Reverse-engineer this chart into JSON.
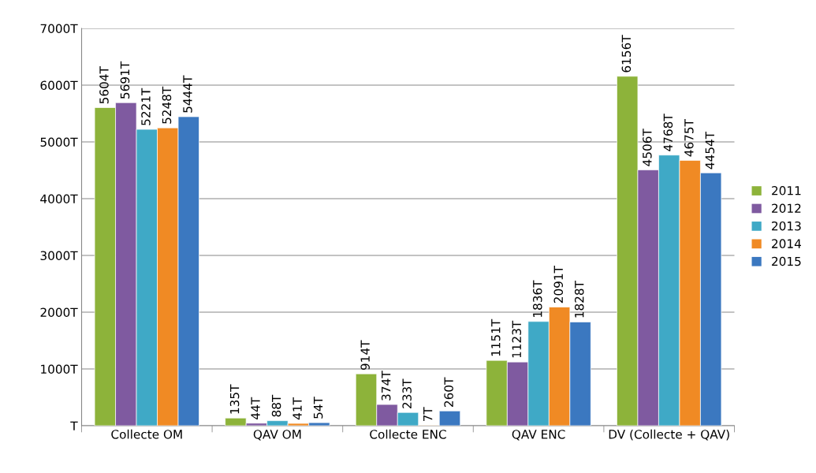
{
  "chart_data": {
    "type": "bar",
    "categories": [
      "Collecte OM",
      "QAV OM",
      "Collecte ENC",
      "QAV ENC",
      "DV (Collecte + QAV)"
    ],
    "series": [
      {
        "name": "2011",
        "color": "#8db33a",
        "values": [
          5604,
          135,
          914,
          1151,
          6156
        ],
        "value_labels": [
          "5604T",
          "135T",
          "914T",
          "1151T",
          "6156T"
        ]
      },
      {
        "name": "2012",
        "color": "#7f5aa0",
        "values": [
          5691,
          44,
          374,
          1123,
          4506
        ],
        "value_labels": [
          "5691T",
          "44T",
          "374T",
          "1123T",
          "4506T"
        ]
      },
      {
        "name": "2013",
        "color": "#3fa9c6",
        "values": [
          5221,
          88,
          233,
          1836,
          4768
        ],
        "value_labels": [
          "5221T",
          "88T",
          "233T",
          "1836T",
          "4768T"
        ]
      },
      {
        "name": "2014",
        "color": "#f08a24",
        "values": [
          5248,
          41,
          7,
          2091,
          4675
        ],
        "value_labels": [
          "5248T",
          "41T",
          "7T",
          "2091T",
          "4675T"
        ]
      },
      {
        "name": "2015",
        "color": "#3b78c0",
        "values": [
          5444,
          54,
          260,
          1828,
          4454
        ],
        "value_labels": [
          "5444T",
          "54T",
          "260T",
          "1828T",
          "4454T"
        ]
      }
    ],
    "ylim": [
      0,
      7000
    ],
    "yticks": [
      {
        "value": 0,
        "label": "T"
      },
      {
        "value": 1000,
        "label": "1000T"
      },
      {
        "value": 2000,
        "label": "2000T"
      },
      {
        "value": 3000,
        "label": "3000T"
      },
      {
        "value": 4000,
        "label": "4000T"
      },
      {
        "value": 5000,
        "label": "5000T"
      },
      {
        "value": 6000,
        "label": "6000T"
      },
      {
        "value": 7000,
        "label": "7000T"
      }
    ],
    "grid": "y",
    "legend": "right"
  }
}
